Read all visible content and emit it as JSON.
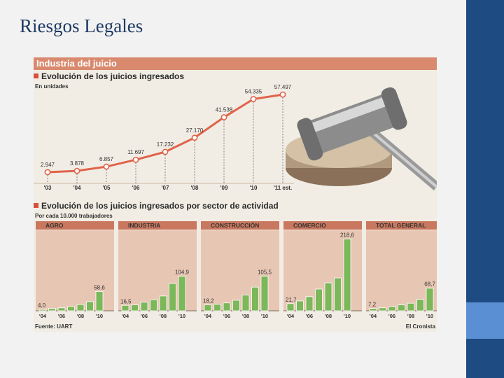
{
  "slide": {
    "title": "Riesgos Legales"
  },
  "clip": {
    "band_title": "Industria del juicio",
    "source": "Fuente: UART",
    "credit": "El Cronista"
  },
  "colors": {
    "line": "#e0634a",
    "bar": "#7ab85a",
    "slide_bar": "#1e4b82",
    "slide_accent": "#5b8fd4"
  },
  "chart_data": [
    {
      "type": "line",
      "title": "Evolución de los juicios ingresados",
      "subtitle": "En unidades",
      "x": [
        "'03",
        "'04",
        "'05",
        "'06",
        "'07",
        "'08",
        "'09",
        "'10",
        "'11 est."
      ],
      "values": [
        2947,
        3878,
        6857,
        11697,
        17232,
        27170,
        41538,
        54335,
        57497
      ],
      "labels": [
        "2.947",
        "3.878",
        "6.857",
        "11.697",
        "17.232",
        "27.170",
        "41.538",
        "54.335",
        "57.497"
      ],
      "ylim": [
        0,
        60000
      ]
    },
    {
      "type": "bar",
      "title": "Evolución de los juicios ingresados por sector de actividad",
      "subtitle": "Por cada 10.000 trabajadores",
      "categories": [
        "'04",
        "'05",
        "'06",
        "'07",
        "'08",
        "'09",
        "'10"
      ],
      "tick_labels": [
        "'04",
        "'06",
        "'08",
        "'10"
      ],
      "series": [
        {
          "name": "AGRO",
          "values": [
            4.0,
            7,
            9,
            13,
            19,
            28,
            58.6
          ],
          "first_label": "4,0",
          "last_label": "58,6"
        },
        {
          "name": "INDUSTRIA",
          "values": [
            16.5,
            18,
            26,
            34,
            45,
            83,
            104.9
          ],
          "first_label": "16,5",
          "last_label": "104,9"
        },
        {
          "name": "CONSTRUCCIÓN",
          "values": [
            18.2,
            20,
            24,
            32,
            48,
            72,
            105.5
          ],
          "first_label": "18,2",
          "last_label": "105,5"
        },
        {
          "name": "COMERCIO",
          "values": [
            21.7,
            30,
            43,
            66,
            85,
            100,
            218.6
          ],
          "first_label": "21,7",
          "last_label": "218,6"
        },
        {
          "name": "TOTAL GENERAL",
          "values": [
            7.2,
            9,
            13,
            18,
            23,
            35,
            68.7
          ],
          "first_label": "7,2",
          "last_label": "68,7"
        }
      ],
      "ylim": [
        0,
        230
      ]
    }
  ]
}
